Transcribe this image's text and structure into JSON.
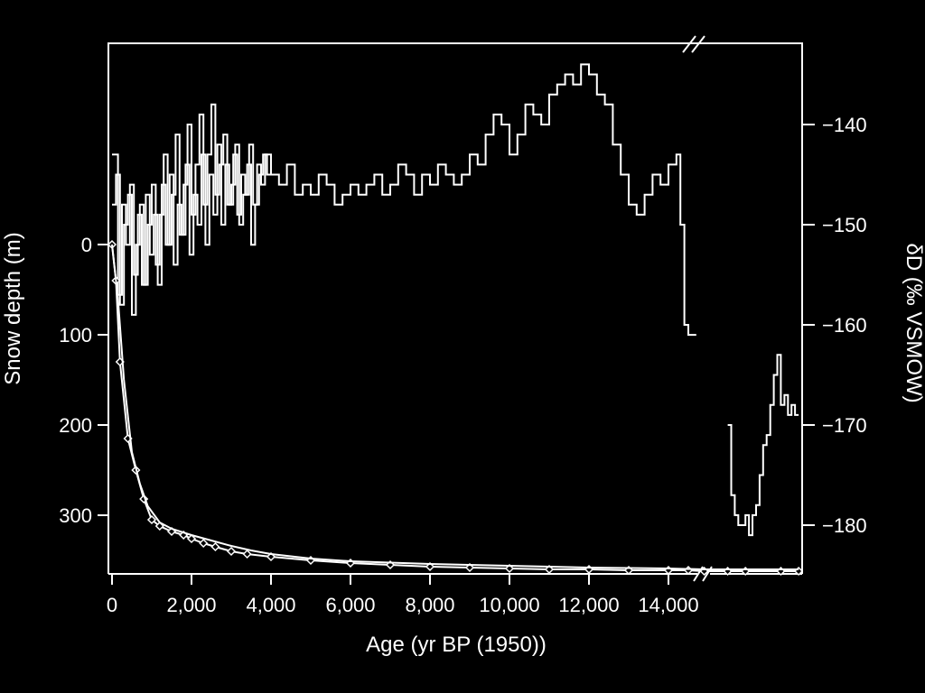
{
  "chart_data": {
    "type": "line",
    "title": "",
    "xlabel": "Age (yr BP (1950))",
    "ylabel_left": "Snow depth (m)",
    "ylabel_right": "δD (‰ VSMOW)",
    "x_ticks": [
      "0",
      "2,000",
      "4,000",
      "6,000",
      "8,000",
      "10,000",
      "12,000",
      "14,000"
    ],
    "y_left_ticks": [
      "0",
      "100",
      "200",
      "300"
    ],
    "y_right_ticks": [
      "−140",
      "−150",
      "−160",
      "−170",
      "−180"
    ],
    "xlim": [
      -100,
      17600
    ],
    "xlim_note_break_after": 14900,
    "ylim_left": [
      -215,
      362
    ],
    "ylim_right": [
      -128,
      -185
    ],
    "series": [
      {
        "axis": "right",
        "style": "step",
        "segment": "main",
        "x": [
          0,
          150,
          250,
          350,
          450,
          550,
          650,
          750,
          850,
          950,
          1050,
          1150,
          1250,
          1350,
          1450,
          1550,
          1650,
          1750,
          1850,
          1950,
          2050,
          2150,
          2250,
          2350,
          2450,
          2550,
          2650,
          2750,
          2850,
          2950,
          3050,
          3150,
          3250,
          3350,
          3450,
          3550,
          3650,
          3750,
          3850,
          4000,
          4200,
          4400,
          4600,
          4800,
          5000,
          5200,
          5400,
          5600,
          5800,
          6000,
          6200,
          6400,
          6600,
          6800,
          7000,
          7200,
          7400,
          7600,
          7800,
          8000,
          8200,
          8400,
          8600,
          8800,
          9000,
          9200,
          9400,
          9600,
          9800,
          10000,
          10200,
          10400,
          10600,
          10800,
          11000,
          11200,
          11400,
          11600,
          11800,
          12000,
          12200,
          12400,
          12600,
          12800,
          13000,
          13200,
          13400,
          13600,
          13800,
          14000,
          14200,
          14300,
          14400,
          14500,
          14600
        ],
        "y": [
          -143,
          -157,
          -148,
          -152,
          -146,
          -155,
          -149,
          -156,
          -147,
          -153,
          -149,
          -156,
          -146,
          -152,
          -145,
          -154,
          -148,
          -151,
          -144,
          -153,
          -147,
          -150,
          -143,
          -152,
          -145,
          -149,
          -142,
          -150,
          -144,
          -148,
          -143,
          -149,
          -145,
          -147,
          -142,
          -148,
          -144,
          -146,
          -143,
          -145,
          -146,
          -144,
          -147,
          -146,
          -147,
          -145,
          -146,
          -148,
          -147,
          -146,
          -147,
          -146,
          -145,
          -147,
          -146,
          -144,
          -145,
          -147,
          -145,
          -146,
          -144,
          -145,
          -146,
          -145,
          -143,
          -144,
          -141,
          -139,
          -140,
          -143,
          -141,
          -138,
          -139,
          -140,
          -137,
          -136,
          -135,
          -136,
          -134,
          -135,
          -137,
          -138,
          -142,
          -145,
          -148,
          -149,
          -147,
          -145,
          -146,
          -144,
          -143,
          -150,
          -160,
          -161,
          -161
        ]
      },
      {
        "axis": "right",
        "style": "step",
        "segment": "main-alt",
        "x": [
          0,
          100,
          200,
          300,
          400,
          500,
          600,
          700,
          800,
          900,
          1000,
          1100,
          1200,
          1300,
          1400,
          1500,
          1600,
          1700,
          1800,
          1900,
          2000,
          2100,
          2200,
          2300,
          2400,
          2500,
          2600,
          2700,
          2800,
          2900,
          3000,
          3100,
          3200,
          3300,
          3400,
          3500,
          3600,
          3700,
          3800,
          3900
        ],
        "y": [
          -148,
          -145,
          -158,
          -150,
          -147,
          -159,
          -152,
          -148,
          -156,
          -150,
          -146,
          -154,
          -149,
          -143,
          -152,
          -147,
          -141,
          -151,
          -146,
          -140,
          -149,
          -144,
          -139,
          -148,
          -143,
          -138,
          -147,
          -144,
          -141,
          -148,
          -146,
          -142,
          -150,
          -147,
          -144,
          -152,
          -148,
          -145,
          -143,
          -145
        ]
      },
      {
        "axis": "right",
        "style": "step",
        "segment": "after-break",
        "x": [
          15500,
          15600,
          15700,
          15800,
          15900,
          16000,
          16100,
          16200,
          16300,
          16400,
          16500,
          16600,
          16700,
          16800,
          16900,
          17000,
          17100,
          17200,
          17300,
          17400
        ],
        "y": [
          -170,
          -177,
          -179,
          -180,
          -180,
          -179,
          -181,
          -179,
          -178,
          -175,
          -172,
          -171,
          -168,
          -165,
          -163,
          -168,
          -167,
          -169,
          -168,
          -169
        ]
      },
      {
        "axis": "left",
        "style": "line-markers",
        "name": "",
        "x": [
          0,
          100,
          200,
          400,
          600,
          800,
          1000,
          1200,
          1500,
          1800,
          2000,
          2300,
          2600,
          3000,
          3400,
          4000,
          5000,
          6000,
          7000,
          8000,
          9000,
          10000,
          11000,
          12000,
          13000,
          14000,
          14500,
          14900,
          15500,
          16000,
          17000,
          17500
        ],
        "y": [
          0,
          40,
          130,
          215,
          250,
          282,
          305,
          312,
          318,
          322,
          326,
          331,
          335,
          340,
          343,
          346,
          350,
          353,
          355,
          357,
          358,
          359,
          360,
          360,
          361,
          361,
          361,
          362,
          362,
          362,
          362,
          362
        ]
      },
      {
        "axis": "left",
        "style": "line",
        "name": "",
        "x": [
          0,
          150,
          300,
          500,
          700,
          900,
          1200,
          1500,
          2000,
          2500,
          3000,
          3500,
          4000,
          5000,
          6000,
          8000,
          10000,
          12000,
          14000,
          14900,
          16000,
          17500
        ],
        "y": [
          0,
          60,
          150,
          230,
          265,
          290,
          308,
          315,
          322,
          328,
          334,
          339,
          343,
          348,
          351,
          354,
          356,
          358,
          359,
          360,
          360,
          360
        ]
      }
    ]
  }
}
